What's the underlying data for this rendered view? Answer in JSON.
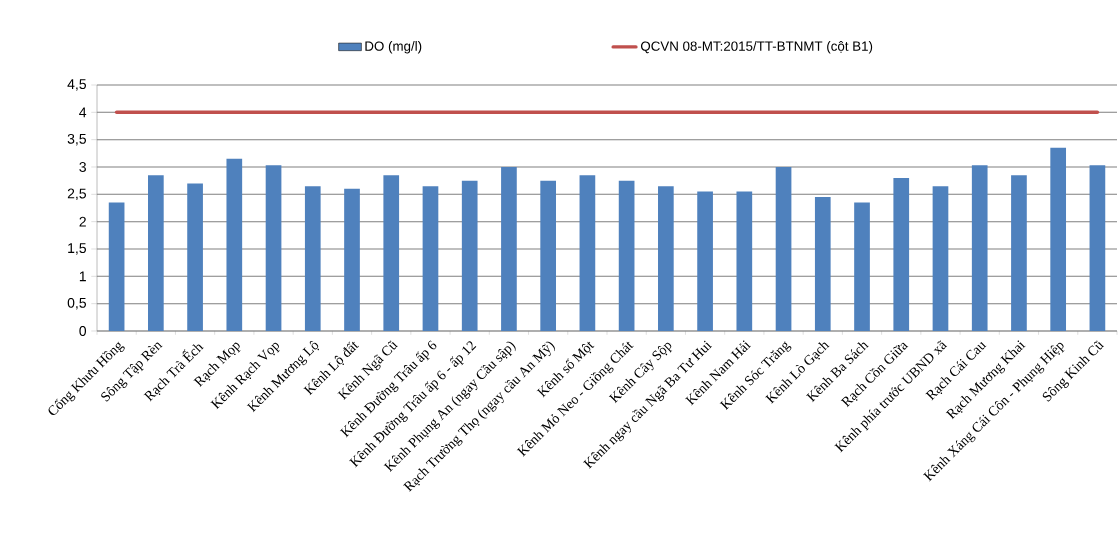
{
  "chart_data": {
    "type": "bar",
    "categories": [
      "Cống Khưu Hồng",
      "Sông Tập Rèn",
      "Rạch Trà Ếch",
      "Rạch Mọp",
      "Kênh Rạch Vọp",
      "Kênh Mương Lộ",
      "Kênh Lộ đất",
      "Kênh Ngã Cũ",
      "Kênh Đường Trâu ấp 6",
      "Kênh Đường Trâu ấp 6 - ấp 12",
      "Kênh Phụng An (ngay Cầu sập)",
      "Rạch Trường Thọ (ngay cầu An Mỹ)",
      "Kênh số Một",
      "Kênh Mỏ Neo - Giồng Chát",
      "Kênh Cây Sộp",
      "Kênh ngay cầu Ngã Ba Tư Hui",
      "Kênh Nam Hải",
      "Kênh Sóc Trăng",
      "Kênh Lò Gạch",
      "Kênh Ba Sách",
      "Rạch Cồn Giữa",
      "Kênh phía trước UBND xã",
      "Rạch Cái Cau",
      "Rạch Mương Khai",
      "Kênh Xáng Cái Côn - Phụng Hiệp",
      "Sông Kinh Cũ"
    ],
    "series": [
      {
        "name": "DO (mg/l)",
        "color": "#4f81bd",
        "values": [
          2.35,
          2.85,
          2.7,
          3.15,
          3.03,
          2.65,
          2.6,
          2.85,
          2.65,
          2.75,
          3.0,
          2.75,
          2.85,
          2.75,
          2.65,
          2.55,
          2.55,
          3.0,
          2.45,
          2.35,
          2.8,
          2.65,
          3.03,
          2.85,
          3.35,
          3.03
        ]
      },
      {
        "name": "QCVN 08-MT:2015/TT-BTNMT (cột B1)",
        "type": "line",
        "color": "#c0504d",
        "values": [
          4,
          4,
          4,
          4,
          4,
          4,
          4,
          4,
          4,
          4,
          4,
          4,
          4,
          4,
          4,
          4,
          4,
          4,
          4,
          4,
          4,
          4,
          4,
          4,
          4,
          4
        ]
      }
    ],
    "ylim": [
      0,
      4.5
    ],
    "yticks": [
      0,
      {
        "value": 0.5,
        "label": "0,5"
      },
      1,
      {
        "value": 1.5,
        "label": "1,5"
      },
      2,
      {
        "value": 2.5,
        "label": "2,5"
      },
      3,
      {
        "value": 3.5,
        "label": "3,5"
      },
      4,
      {
        "value": 4.5,
        "label": "4,5"
      }
    ],
    "grid": "y",
    "legend": "top",
    "marker": "none"
  }
}
